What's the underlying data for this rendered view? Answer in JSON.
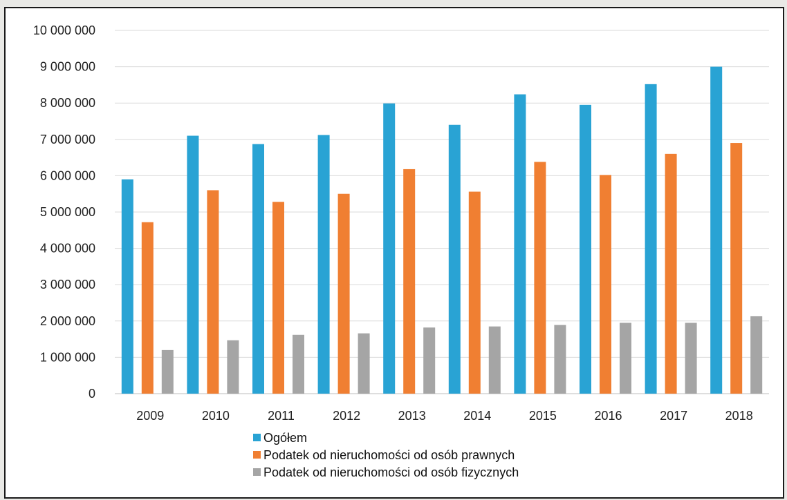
{
  "chart_data": {
    "type": "bar",
    "title": "",
    "xlabel": "",
    "ylabel": "",
    "categories": [
      "2009",
      "2010",
      "2011",
      "2012",
      "2013",
      "2014",
      "2015",
      "2016",
      "2017",
      "2018"
    ],
    "series": [
      {
        "name": "Ogółem",
        "color": "#29a3d4",
        "values": [
          5900000,
          7100000,
          6870000,
          7120000,
          7990000,
          7400000,
          8240000,
          7950000,
          8520000,
          9000000
        ]
      },
      {
        "name": "Podatek od nieruchomości od osób prawnych",
        "color": "#f07f32",
        "values": [
          4720000,
          5600000,
          5280000,
          5500000,
          6180000,
          5560000,
          6380000,
          6020000,
          6600000,
          6900000
        ]
      },
      {
        "name": "Podatek od nieruchomości od osób fizycznych",
        "color": "#a5a5a5",
        "values": [
          1200000,
          1470000,
          1620000,
          1660000,
          1820000,
          1850000,
          1890000,
          1950000,
          1950000,
          2130000
        ]
      }
    ],
    "y_ticks": [
      "0",
      "1 000 000",
      "2 000 000",
      "3 000 000",
      "4 000 000",
      "5 000 000",
      "6 000 000",
      "7 000 000",
      "8 000 000",
      "9 000 000",
      "10 000 000"
    ],
    "ylim": [
      0,
      10000000
    ],
    "grid": true,
    "legend_position": "bottom-center"
  }
}
